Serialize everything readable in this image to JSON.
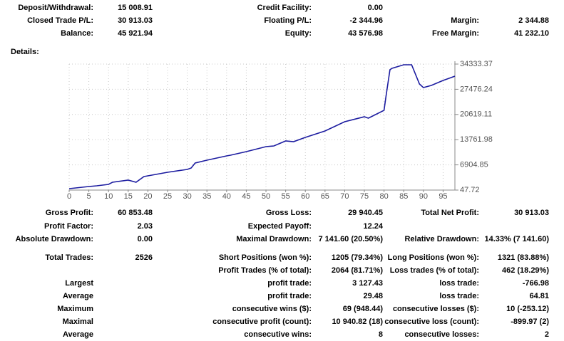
{
  "summary": {
    "rows": [
      {
        "left": {
          "label": "Deposit/Withdrawal:",
          "value": "15 008.91"
        },
        "middle": {
          "label": "Credit Facility:",
          "value": "0.00"
        }
      },
      {
        "left": {
          "label": "Closed Trade P/L:",
          "value": "30 913.03"
        },
        "middle": {
          "label": "Floating P/L:",
          "value": "-2 344.96"
        },
        "right": {
          "label": "Margin:",
          "value": "2 344.88"
        }
      },
      {
        "left": {
          "label": "Balance:",
          "value": "45 921.94"
        },
        "middle": {
          "label": "Equity:",
          "value": "43 576.98"
        },
        "right": {
          "label": "Free Margin:",
          "value": "41 232.10"
        }
      }
    ]
  },
  "details_label": "Details:",
  "chart_data": {
    "type": "line",
    "color": "#1c1ca0",
    "x": [
      0,
      5,
      7,
      10,
      11,
      15,
      17,
      19,
      20,
      25,
      30,
      31,
      32,
      35,
      40,
      41,
      45,
      50,
      52,
      55,
      57,
      60,
      65,
      70,
      75,
      76,
      80,
      80.5,
      81.5,
      82,
      85,
      87,
      89,
      90,
      92,
      95,
      96,
      98
    ],
    "values": [
      435,
      1019,
      1210,
      1597,
      2178,
      2760,
      2178,
      3728,
      3922,
      4890,
      5665,
      6053,
      7408,
      8183,
      9345,
      9539,
      10507,
      11863,
      12057,
      13413,
      13219,
      14381,
      16125,
      18643,
      19999,
      19611,
      21742,
      25616,
      32783,
      33170,
      34139,
      34139,
      28909,
      27940,
      28521,
      29877,
      30265,
      31040
    ],
    "xlim": [
      0,
      98
    ],
    "ylim": [
      47.72,
      34333.37
    ],
    "xticks": [
      0,
      5,
      10,
      15,
      20,
      25,
      30,
      35,
      40,
      45,
      50,
      55,
      60,
      65,
      70,
      75,
      80,
      85,
      90,
      95
    ],
    "yticks": [
      34333.37,
      27476.24,
      20619.11,
      13761.98,
      6904.85,
      47.72
    ],
    "grid": true
  },
  "statistics": {
    "rows": [
      {
        "left": {
          "label": "Gross Profit:",
          "value": "60 853.48"
        },
        "middle": {
          "label": "Gross Loss:",
          "value": "29 940.45"
        },
        "right": {
          "label": "Total Net Profit:",
          "value": "30 913.03"
        }
      },
      {
        "left": {
          "label": "Profit Factor:",
          "value": "2.03"
        },
        "middle": {
          "label": "Expected Payoff:",
          "value": "12.24"
        }
      },
      {
        "left": {
          "label": "Absolute Drawdown:",
          "value": "0.00"
        },
        "middle": {
          "label": "Maximal Drawdown:",
          "value": "7 141.60 (20.50%)"
        },
        "right": {
          "label": "Relative Drawdown:",
          "value": "14.33% (7 141.60)"
        }
      },
      {
        "left": {
          "label": "Total Trades:",
          "value": "2526"
        },
        "middle": {
          "label": "Short Positions (won %):",
          "value": "1205 (79.34%)"
        },
        "right": {
          "label": "Long Positions (won %):",
          "value": "1321 (83.88%)"
        }
      },
      {
        "middle": {
          "label": "Profit Trades (% of total):",
          "value": "2064 (81.71%)"
        },
        "right": {
          "label": "Loss trades (% of total):",
          "value": "462 (18.29%)"
        }
      },
      {
        "left": {
          "label": "Largest"
        },
        "middle": {
          "label": "profit trade:",
          "value": "3 127.43"
        },
        "right": {
          "label": "loss trade:",
          "value": "-766.98"
        }
      },
      {
        "left": {
          "label": "Average"
        },
        "middle": {
          "label": "profit trade:",
          "value": "29.48"
        },
        "right": {
          "label": "loss trade:",
          "value": "64.81"
        }
      },
      {
        "left": {
          "label": "Maximum"
        },
        "middle": {
          "label": "consecutive wins ($):",
          "value": "69 (948.44)"
        },
        "right": {
          "label": "consecutive losses ($):",
          "value": "10 (-253.12)"
        }
      },
      {
        "left": {
          "label": "Maximal"
        },
        "middle": {
          "label": "consecutive profit (count):",
          "value": "10 940.82 (18)"
        },
        "right": {
          "label": "consecutive loss (count):",
          "value": "-899.97 (2)"
        }
      },
      {
        "left": {
          "label": "Average"
        },
        "middle": {
          "label": "consecutive wins:",
          "value": "8"
        },
        "right": {
          "label": "consecutive losses:",
          "value": "2"
        }
      }
    ]
  }
}
